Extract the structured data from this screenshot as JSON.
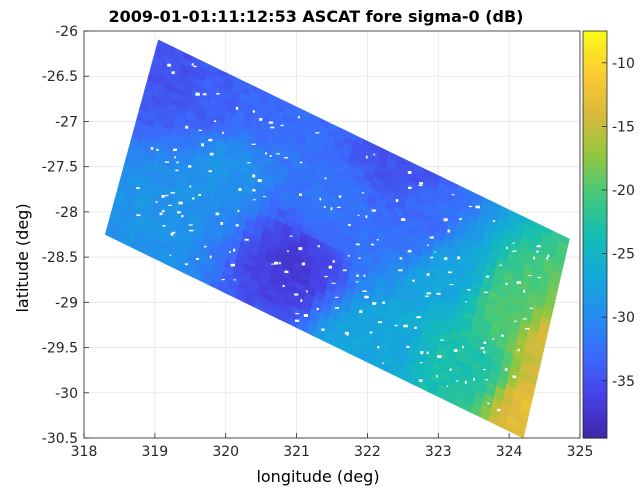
{
  "chart_data": {
    "type": "heatmap",
    "title": "2009-01-01:11:12:53 ASCAT fore sigma-0 (dB)",
    "xlabel": "longitude (deg)",
    "ylabel": "latitude (deg)",
    "xlim": [
      318,
      325
    ],
    "ylim": [
      -30.5,
      -26
    ],
    "xticks": [
      "318",
      "319",
      "320",
      "321",
      "322",
      "323",
      "324",
      "325"
    ],
    "yticks": [
      "-26",
      "-26.5",
      "-27",
      "-27.5",
      "-28",
      "-28.5",
      "-29",
      "-29.5",
      "-30",
      "-30.5"
    ],
    "grid": true,
    "colorbar": {
      "colormap": "parula",
      "range": [
        -39.5,
        -7.5
      ],
      "ticks": [
        "-10",
        "-15",
        "-20",
        "-25",
        "-30",
        "-35"
      ],
      "tick_values": [
        -10,
        -15,
        -20,
        -25,
        -30,
        -35
      ]
    },
    "swath_corners": [
      {
        "lon": 319.05,
        "lat": -26.1
      },
      {
        "lon": 324.85,
        "lat": -28.3
      },
      {
        "lon": 324.2,
        "lat": -30.5
      },
      {
        "lon": 318.3,
        "lat": -28.25
      }
    ],
    "field_anchors": [
      {
        "lon": 319.3,
        "lat": -26.5,
        "value": -35
      },
      {
        "lon": 319.8,
        "lat": -26.8,
        "value": -34
      },
      {
        "lon": 320.5,
        "lat": -26.9,
        "value": -33
      },
      {
        "lon": 322.5,
        "lat": -27.5,
        "value": -35
      },
      {
        "lon": 321.0,
        "lat": -28.55,
        "value": -37
      },
      {
        "lon": 321.5,
        "lat": -28.0,
        "value": -32
      },
      {
        "lon": 322.8,
        "lat": -28.1,
        "value": -33
      },
      {
        "lon": 319.0,
        "lat": -28.0,
        "value": -29
      },
      {
        "lon": 320.0,
        "lat": -27.5,
        "value": -29
      },
      {
        "lon": 323.5,
        "lat": -29.7,
        "value": -23
      },
      {
        "lon": 324.0,
        "lat": -29.0,
        "value": -20
      },
      {
        "lon": 324.6,
        "lat": -29.5,
        "value": -14
      },
      {
        "lon": 324.3,
        "lat": -30.2,
        "value": -13
      },
      {
        "lon": 322.0,
        "lat": -29.5,
        "value": -27
      },
      {
        "lon": 323.2,
        "lat": -28.7,
        "value": -27
      }
    ]
  }
}
